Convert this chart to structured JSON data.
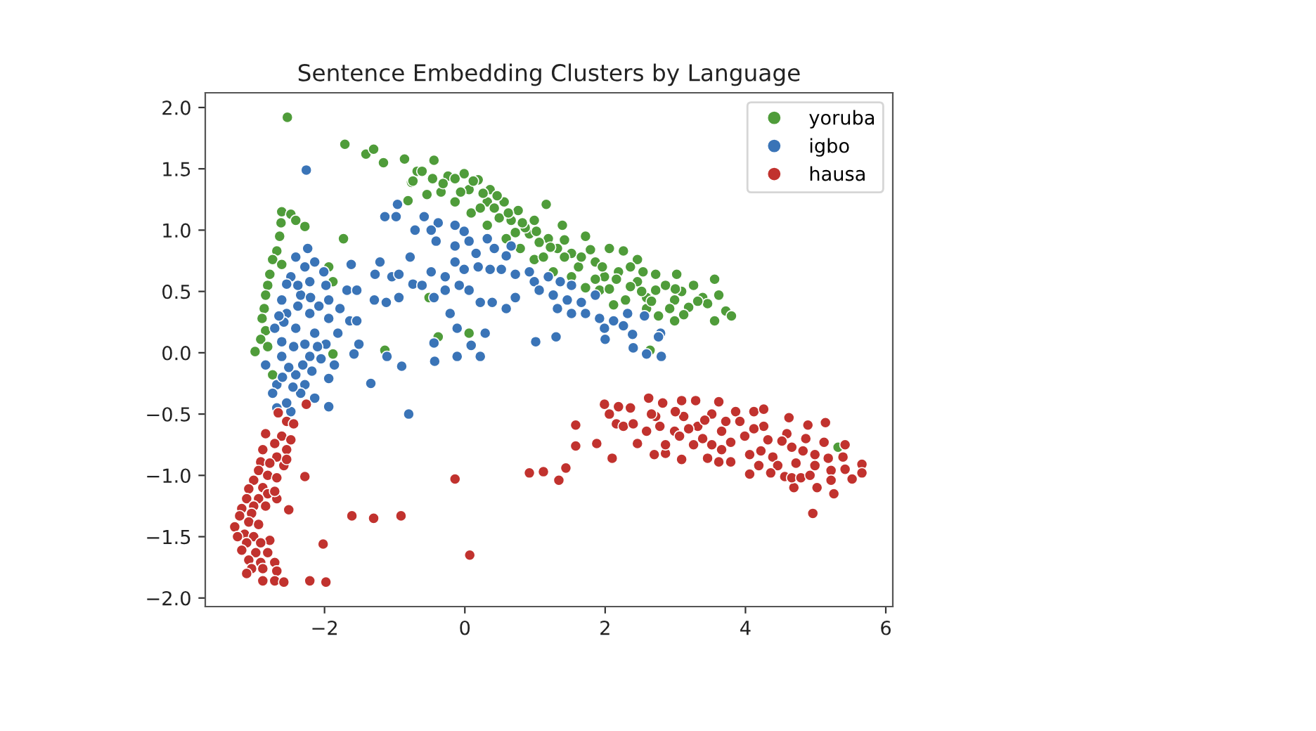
{
  "chart_data": {
    "type": "scatter",
    "title": "Sentence Embedding Clusters by Language",
    "xlim": [
      -3.7,
      6.1
    ],
    "ylim": [
      -2.07,
      2.12
    ],
    "xticks": [
      {
        "value": -2,
        "label": "−2"
      },
      0,
      2,
      4,
      6
    ],
    "yticks": [
      {
        "value": -2.0,
        "label": "−2.0"
      },
      {
        "value": -1.5,
        "label": "−1.5"
      },
      {
        "value": -1.0,
        "label": "−1.0"
      },
      {
        "value": -0.5,
        "label": "−0.5"
      },
      {
        "value": 0.0,
        "label": "0.0"
      },
      {
        "value": 0.5,
        "label": "0.5"
      },
      {
        "value": 1.0,
        "label": "1.0"
      },
      {
        "value": 1.5,
        "label": "1.5"
      },
      {
        "value": 2.0,
        "label": "2.0"
      }
    ],
    "legend": "top right",
    "marker": "circle",
    "series": [
      {
        "name": "yoruba",
        "color": "#4f9c3a",
        "x": [
          -2.53,
          -1.71,
          -1.41,
          -1.3,
          -1.16,
          -0.86,
          -0.76,
          -0.68,
          -0.81,
          -1.73,
          -2.61,
          -2.48,
          -2.41,
          -2.28,
          -2.62,
          -2.64,
          -2.68,
          -2.74,
          -2.61,
          -2.78,
          -2.81,
          -2.84,
          -2.86,
          -2.89,
          -2.84,
          -2.91,
          -2.81,
          -1.94,
          -1.88,
          -2.99,
          -2.74,
          -1.88,
          -1.14,
          -0.44,
          -0.01,
          0.19,
          0.36,
          0.56,
          0.76,
          1.16,
          0.99,
          1.39,
          1.72,
          2.06,
          2.26,
          2.46,
          2.72,
          3.02,
          3.26,
          3.56,
          3.39,
          3.72,
          3.8,
          3.56,
          2.99,
          2.76,
          2.59,
          2.29,
          2.12,
          1.92,
          1.72,
          1.52,
          1.26,
          0.99,
          0.79,
          0.59,
          0.32,
          0.09,
          -0.14,
          -0.34,
          -0.54,
          -0.74,
          -0.61,
          -0.24,
          0.32,
          0.66,
          1.19,
          1.52,
          1.86,
          2.19,
          2.46,
          2.72,
          2.99,
          3.19,
          2.59,
          1.99,
          1.32,
          0.92,
          0.06,
          -0.14,
          0.06,
          -0.38,
          -0.51,
          2.64,
          5.32,
          0.46,
          0.86,
          1.06,
          1.62,
          2.36,
          2.86,
          3.09,
          3.46,
          1.42,
          0.49,
          -0.31,
          -0.06,
          1.79,
          2.54,
          3.12,
          2.06,
          1.12,
          0.22,
          0.72,
          0.12,
          0.42,
          0.62,
          0.82,
          1.02,
          1.22,
          1.42,
          1.66,
          1.96,
          2.16,
          2.36,
          2.66,
          2.92,
          3.32,
          3.62,
          1.86,
          -0.46,
          0.26,
          2.52,
          3.0
        ],
        "values": [
          1.92,
          1.7,
          1.62,
          1.66,
          1.55,
          1.58,
          1.39,
          1.48,
          1.24,
          0.93,
          1.15,
          1.13,
          1.08,
          1.03,
          1.06,
          0.95,
          0.83,
          0.76,
          0.72,
          0.64,
          0.55,
          0.47,
          0.36,
          0.28,
          0.18,
          0.11,
          0.05,
          0.7,
          0.58,
          0.01,
          -0.18,
          -0.01,
          0.02,
          1.57,
          1.46,
          1.41,
          1.33,
          1.23,
          1.16,
          1.21,
          1.08,
          1.04,
          0.95,
          0.85,
          0.83,
          0.76,
          0.64,
          0.64,
          0.55,
          0.6,
          0.45,
          0.34,
          0.3,
          0.26,
          0.26,
          0.3,
          0.36,
          0.43,
          0.39,
          0.51,
          0.53,
          0.62,
          0.66,
          0.76,
          0.85,
          0.93,
          1.04,
          1.14,
          1.23,
          1.31,
          1.29,
          1.4,
          1.48,
          1.44,
          1.23,
          1.08,
          0.93,
          0.81,
          0.74,
          0.66,
          0.58,
          0.51,
          0.43,
          0.37,
          0.45,
          0.62,
          0.85,
          0.97,
          1.33,
          1.42,
          0.16,
          0.13,
          0.45,
          0.02,
          -0.77,
          1.28,
          1.02,
          0.9,
          0.7,
          0.7,
          0.55,
          0.5,
          0.4,
          0.92,
          1.1,
          1.38,
          1.31,
          0.84,
          0.66,
          0.31,
          0.52,
          0.78,
          1.18,
          0.98,
          1.4,
          1.18,
          1.14,
          1.06,
          0.99,
          0.86,
          0.78,
          0.78,
          0.7,
          0.6,
          0.54,
          0.42,
          0.36,
          0.42,
          0.47,
          0.6,
          1.42,
          1.3,
          0.5,
          0.52
        ]
      },
      {
        "name": "igbo",
        "color": "#3a74b7",
        "x": [
          -2.26,
          -2.24,
          -2.41,
          -2.14,
          -2.01,
          -2.48,
          -2.54,
          -2.21,
          -1.98,
          -2.34,
          -2.61,
          -1.94,
          -2.54,
          -2.21,
          -1.94,
          -2.71,
          -2.41,
          -2.14,
          -1.81,
          -2.61,
          -2.28,
          -1.98,
          -1.78,
          -1.64,
          -1.54,
          -1.68,
          -1.54,
          -1.62,
          -1.28,
          -1.21,
          -1.29,
          -1.12,
          -0.94,
          -1.04,
          -0.94,
          -0.74,
          -0.78,
          -1.14,
          -0.98,
          -0.96,
          -0.71,
          -1.51,
          -2.84,
          -1.94,
          -1.86,
          -1.94,
          -1.58,
          -1.34,
          -1.11,
          -0.8,
          -2.68,
          -2.48,
          -2.54,
          -2.14,
          -2.28,
          -2.68,
          -2.41,
          -2.61,
          -2.21,
          -2.74,
          -2.34,
          -0.58,
          -0.38,
          -0.48,
          -0.14,
          -0.01,
          -0.41,
          -0.14,
          0.06,
          0.16,
          0.32,
          0.42,
          0.59,
          0.66,
          -0.14,
          -0.01,
          0.19,
          0.36,
          0.52,
          0.72,
          0.92,
          0.99,
          1.19,
          1.36,
          1.52,
          1.06,
          1.26,
          1.46,
          1.66,
          1.86,
          1.32,
          1.52,
          1.72,
          1.92,
          2.12,
          2.32,
          2.56,
          1.99,
          2.26,
          2.39,
          2.79,
          -0.61,
          -0.48,
          -0.28,
          -0.44,
          -0.28,
          -0.08,
          0.06,
          0.22,
          0.39,
          0.59,
          0.72,
          -0.21,
          -0.11,
          0.29,
          -0.44,
          -0.9,
          -0.43,
          -0.11,
          0.22,
          0.09,
          1.01,
          1.3,
          2.4,
          2.59,
          2.8,
          2.0,
          2.76,
          -2.44,
          -2.31,
          -2.51,
          -2.58,
          -2.38,
          -2.28,
          -2.65,
          -2.08,
          -2.18,
          -2.45,
          -2.05,
          -2.38,
          -2.6,
          -2.2,
          -2.1
        ],
        "values": [
          1.49,
          0.85,
          0.78,
          0.74,
          0.66,
          0.62,
          0.56,
          0.58,
          0.55,
          0.47,
          0.43,
          0.43,
          0.32,
          0.32,
          0.28,
          0.2,
          0.2,
          0.16,
          0.16,
          0.09,
          0.07,
          0.07,
          0.36,
          0.26,
          0.26,
          0.51,
          0.51,
          0.72,
          0.64,
          0.74,
          0.43,
          0.41,
          0.45,
          0.62,
          0.64,
          0.56,
          0.78,
          1.11,
          1.11,
          1.21,
          1.0,
          0.07,
          -0.1,
          -0.21,
          -0.1,
          -0.44,
          -0.01,
          -0.25,
          -0.03,
          -0.5,
          -0.45,
          -0.48,
          -0.41,
          -0.37,
          -0.26,
          -0.26,
          -0.18,
          -0.03,
          -0.03,
          -0.33,
          -0.33,
          1.11,
          1.06,
          1.0,
          1.04,
          0.99,
          0.91,
          0.87,
          0.91,
          0.81,
          0.93,
          0.85,
          0.79,
          0.87,
          0.74,
          0.68,
          0.7,
          0.68,
          0.68,
          0.64,
          0.66,
          0.58,
          0.62,
          0.58,
          0.55,
          0.51,
          0.47,
          0.43,
          0.41,
          0.47,
          0.36,
          0.32,
          0.32,
          0.28,
          0.26,
          0.32,
          0.3,
          0.2,
          0.22,
          0.15,
          0.16,
          0.55,
          0.66,
          0.62,
          0.45,
          0.51,
          0.55,
          0.51,
          0.41,
          0.41,
          0.36,
          0.45,
          0.32,
          0.2,
          0.16,
          0.08,
          -0.11,
          -0.07,
          -0.03,
          -0.03,
          0.06,
          0.09,
          0.13,
          0.04,
          -0.01,
          -0.03,
          0.11,
          0.13,
          0.05,
          -0.1,
          -0.12,
          0.25,
          0.38,
          0.7,
          0.3,
          0.38,
          -0.15,
          -0.28,
          -0.05,
          0.55,
          -0.2,
          0.45,
          0.05
        ]
      },
      {
        "name": "hausa",
        "color": "#c1322e",
        "x": [
          -2.26,
          -2.66,
          -2.54,
          -2.44,
          -2.84,
          -2.61,
          -2.48,
          -2.71,
          -2.88,
          -2.54,
          -2.68,
          -2.91,
          -2.78,
          -2.58,
          -2.94,
          -2.81,
          -2.68,
          -3.01,
          -2.88,
          -3.08,
          -2.81,
          -2.94,
          -3.11,
          -3.01,
          -2.68,
          -2.84,
          -3.18,
          -3.04,
          -3.21,
          -3.08,
          -2.94,
          -3.28,
          -3.14,
          -3.24,
          -3.01,
          -3.11,
          -2.78,
          -3.18,
          -2.98,
          -2.81,
          -3.08,
          -2.91,
          -2.71,
          -3.04,
          -2.88,
          -2.68,
          -3.11,
          -2.88,
          -2.71,
          -2.58,
          -2.21,
          -1.98,
          -2.91,
          -2.28,
          -2.51,
          -2.02,
          -1.61,
          -1.3,
          -0.91,
          -2.54,
          -2.71,
          -0.14,
          0.07,
          0.92,
          1.12,
          1.34,
          1.44,
          1.58,
          1.58,
          1.88,
          2.1,
          1.99,
          2.19,
          2.36,
          2.06,
          2.16,
          2.26,
          2.4,
          2.46,
          2.62,
          2.82,
          3.09,
          3.29,
          3.62,
          3.86,
          4.12,
          4.26,
          4.62,
          4.89,
          5.14,
          5.42,
          5.66,
          5.66,
          5.52,
          5.26,
          5.02,
          4.69,
          4.96,
          5.22,
          5.22,
          4.56,
          4.66,
          4.06,
          4.19,
          3.79,
          3.62,
          3.46,
          3.09,
          2.7,
          2.86,
          2.59,
          2.99,
          3.32,
          3.66,
          3.99,
          4.32,
          4.66,
          4.99,
          2.72,
          3.12,
          3.52,
          3.92,
          4.26,
          4.59,
          4.86,
          5.12,
          2.86,
          3.26,
          3.66,
          4.06,
          4.39,
          4.72,
          4.99,
          5.39,
          4.46,
          4.79,
          3.39,
          3.79,
          3.06,
          2.66,
          3.0,
          3.42,
          3.72,
          4.12,
          4.52,
          4.82,
          5.18,
          3.52,
          4.22,
          2.78,
          3.19,
          4.92,
          5.42,
          4.36
        ],
        "values": [
          -0.42,
          -0.49,
          -0.56,
          -0.58,
          -0.66,
          -0.68,
          -0.71,
          -0.74,
          -0.79,
          -0.79,
          -0.85,
          -0.89,
          -0.9,
          -0.92,
          -0.96,
          -1.0,
          -1.02,
          -1.04,
          -1.1,
          -1.11,
          -1.15,
          -1.19,
          -1.19,
          -1.25,
          -1.19,
          -1.25,
          -1.27,
          -1.31,
          -1.33,
          -1.38,
          -1.4,
          -1.42,
          -1.48,
          -1.5,
          -1.5,
          -1.55,
          -1.53,
          -1.61,
          -1.63,
          -1.63,
          -1.69,
          -1.71,
          -1.71,
          -1.76,
          -1.76,
          -1.78,
          -1.8,
          -1.86,
          -1.86,
          -1.87,
          -1.86,
          -1.87,
          -1.55,
          -1.01,
          -1.28,
          -1.56,
          -1.33,
          -1.35,
          -1.33,
          -0.87,
          -1.13,
          -1.03,
          -1.65,
          -0.98,
          -0.97,
          -1.04,
          -0.94,
          -0.59,
          -0.76,
          -0.74,
          -0.86,
          -0.42,
          -0.44,
          -0.45,
          -0.5,
          -0.58,
          -0.6,
          -0.58,
          -0.74,
          -0.37,
          -0.41,
          -0.39,
          -0.39,
          -0.4,
          -0.48,
          -0.48,
          -0.46,
          -0.53,
          -0.59,
          -0.57,
          -0.75,
          -0.91,
          -0.98,
          -1.03,
          -1.15,
          -1.1,
          -1.1,
          -1.31,
          -0.96,
          -1.04,
          -1.01,
          -1.02,
          -0.99,
          -0.92,
          -0.89,
          -0.89,
          -0.86,
          -0.87,
          -0.83,
          -0.82,
          -0.64,
          -0.64,
          -0.6,
          -0.64,
          -0.68,
          -0.71,
          -0.77,
          -0.83,
          -0.52,
          -0.52,
          -0.5,
          -0.56,
          -0.6,
          -0.66,
          -0.7,
          -0.73,
          -0.75,
          -0.75,
          -0.79,
          -0.83,
          -0.85,
          -0.9,
          -0.92,
          -0.85,
          -0.92,
          -1.02,
          -0.7,
          -0.73,
          -0.68,
          -0.5,
          -0.48,
          -0.55,
          -0.56,
          -0.62,
          -0.72,
          -0.8,
          -0.86,
          -0.75,
          -0.8,
          -0.6,
          -0.62,
          -1.0,
          -0.95,
          -0.98
        ]
      }
    ]
  }
}
